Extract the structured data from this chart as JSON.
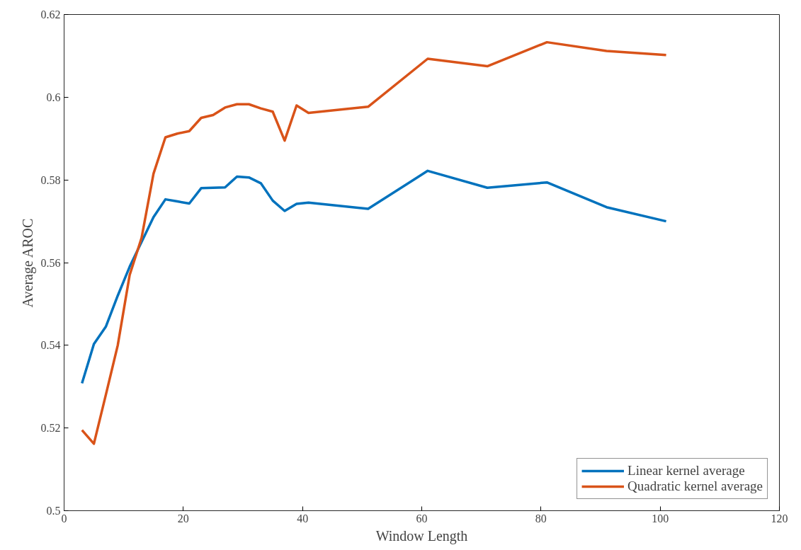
{
  "chart_data": {
    "type": "line",
    "xlabel": "Window Length",
    "ylabel": "Average AROC",
    "xlim": [
      0,
      120
    ],
    "ylim": [
      0.5,
      0.62
    ],
    "xticks": [
      0,
      20,
      40,
      60,
      80,
      100,
      120
    ],
    "yticks": [
      0.5,
      0.52,
      0.54,
      0.56,
      0.58,
      0.6,
      0.62
    ],
    "grid": false,
    "legend": "bottom right",
    "marker": "none",
    "line_style": "solid",
    "x": [
      3,
      5,
      7,
      9,
      11,
      13,
      15,
      17,
      19,
      21,
      23,
      25,
      27,
      29,
      31,
      33,
      35,
      37,
      39,
      41,
      51,
      61,
      71,
      81,
      91,
      101
    ],
    "series": [
      {
        "name": "Linear kernel average",
        "color": "#0072bd",
        "values": [
          0.5308,
          0.5403,
          0.5445,
          0.552,
          0.559,
          0.565,
          0.571,
          0.5753,
          0.5748,
          0.5743,
          0.578,
          0.5781,
          0.5782,
          0.5808,
          0.5806,
          0.5792,
          0.575,
          0.5725,
          0.5742,
          0.5745,
          0.573,
          0.5822,
          0.5781,
          0.5794,
          0.5734,
          0.57
        ]
      },
      {
        "name": "Quadratic kernel average",
        "color": "#d95319",
        "values": [
          0.5195,
          0.5162,
          0.528,
          0.54,
          0.557,
          0.566,
          0.5815,
          0.5903,
          0.5912,
          0.5918,
          0.595,
          0.5957,
          0.5975,
          0.5983,
          0.5983,
          0.5973,
          0.5965,
          0.5895,
          0.598,
          0.5962,
          0.5977,
          0.6093,
          0.6075,
          0.6133,
          0.6112,
          0.6102
        ]
      }
    ]
  }
}
